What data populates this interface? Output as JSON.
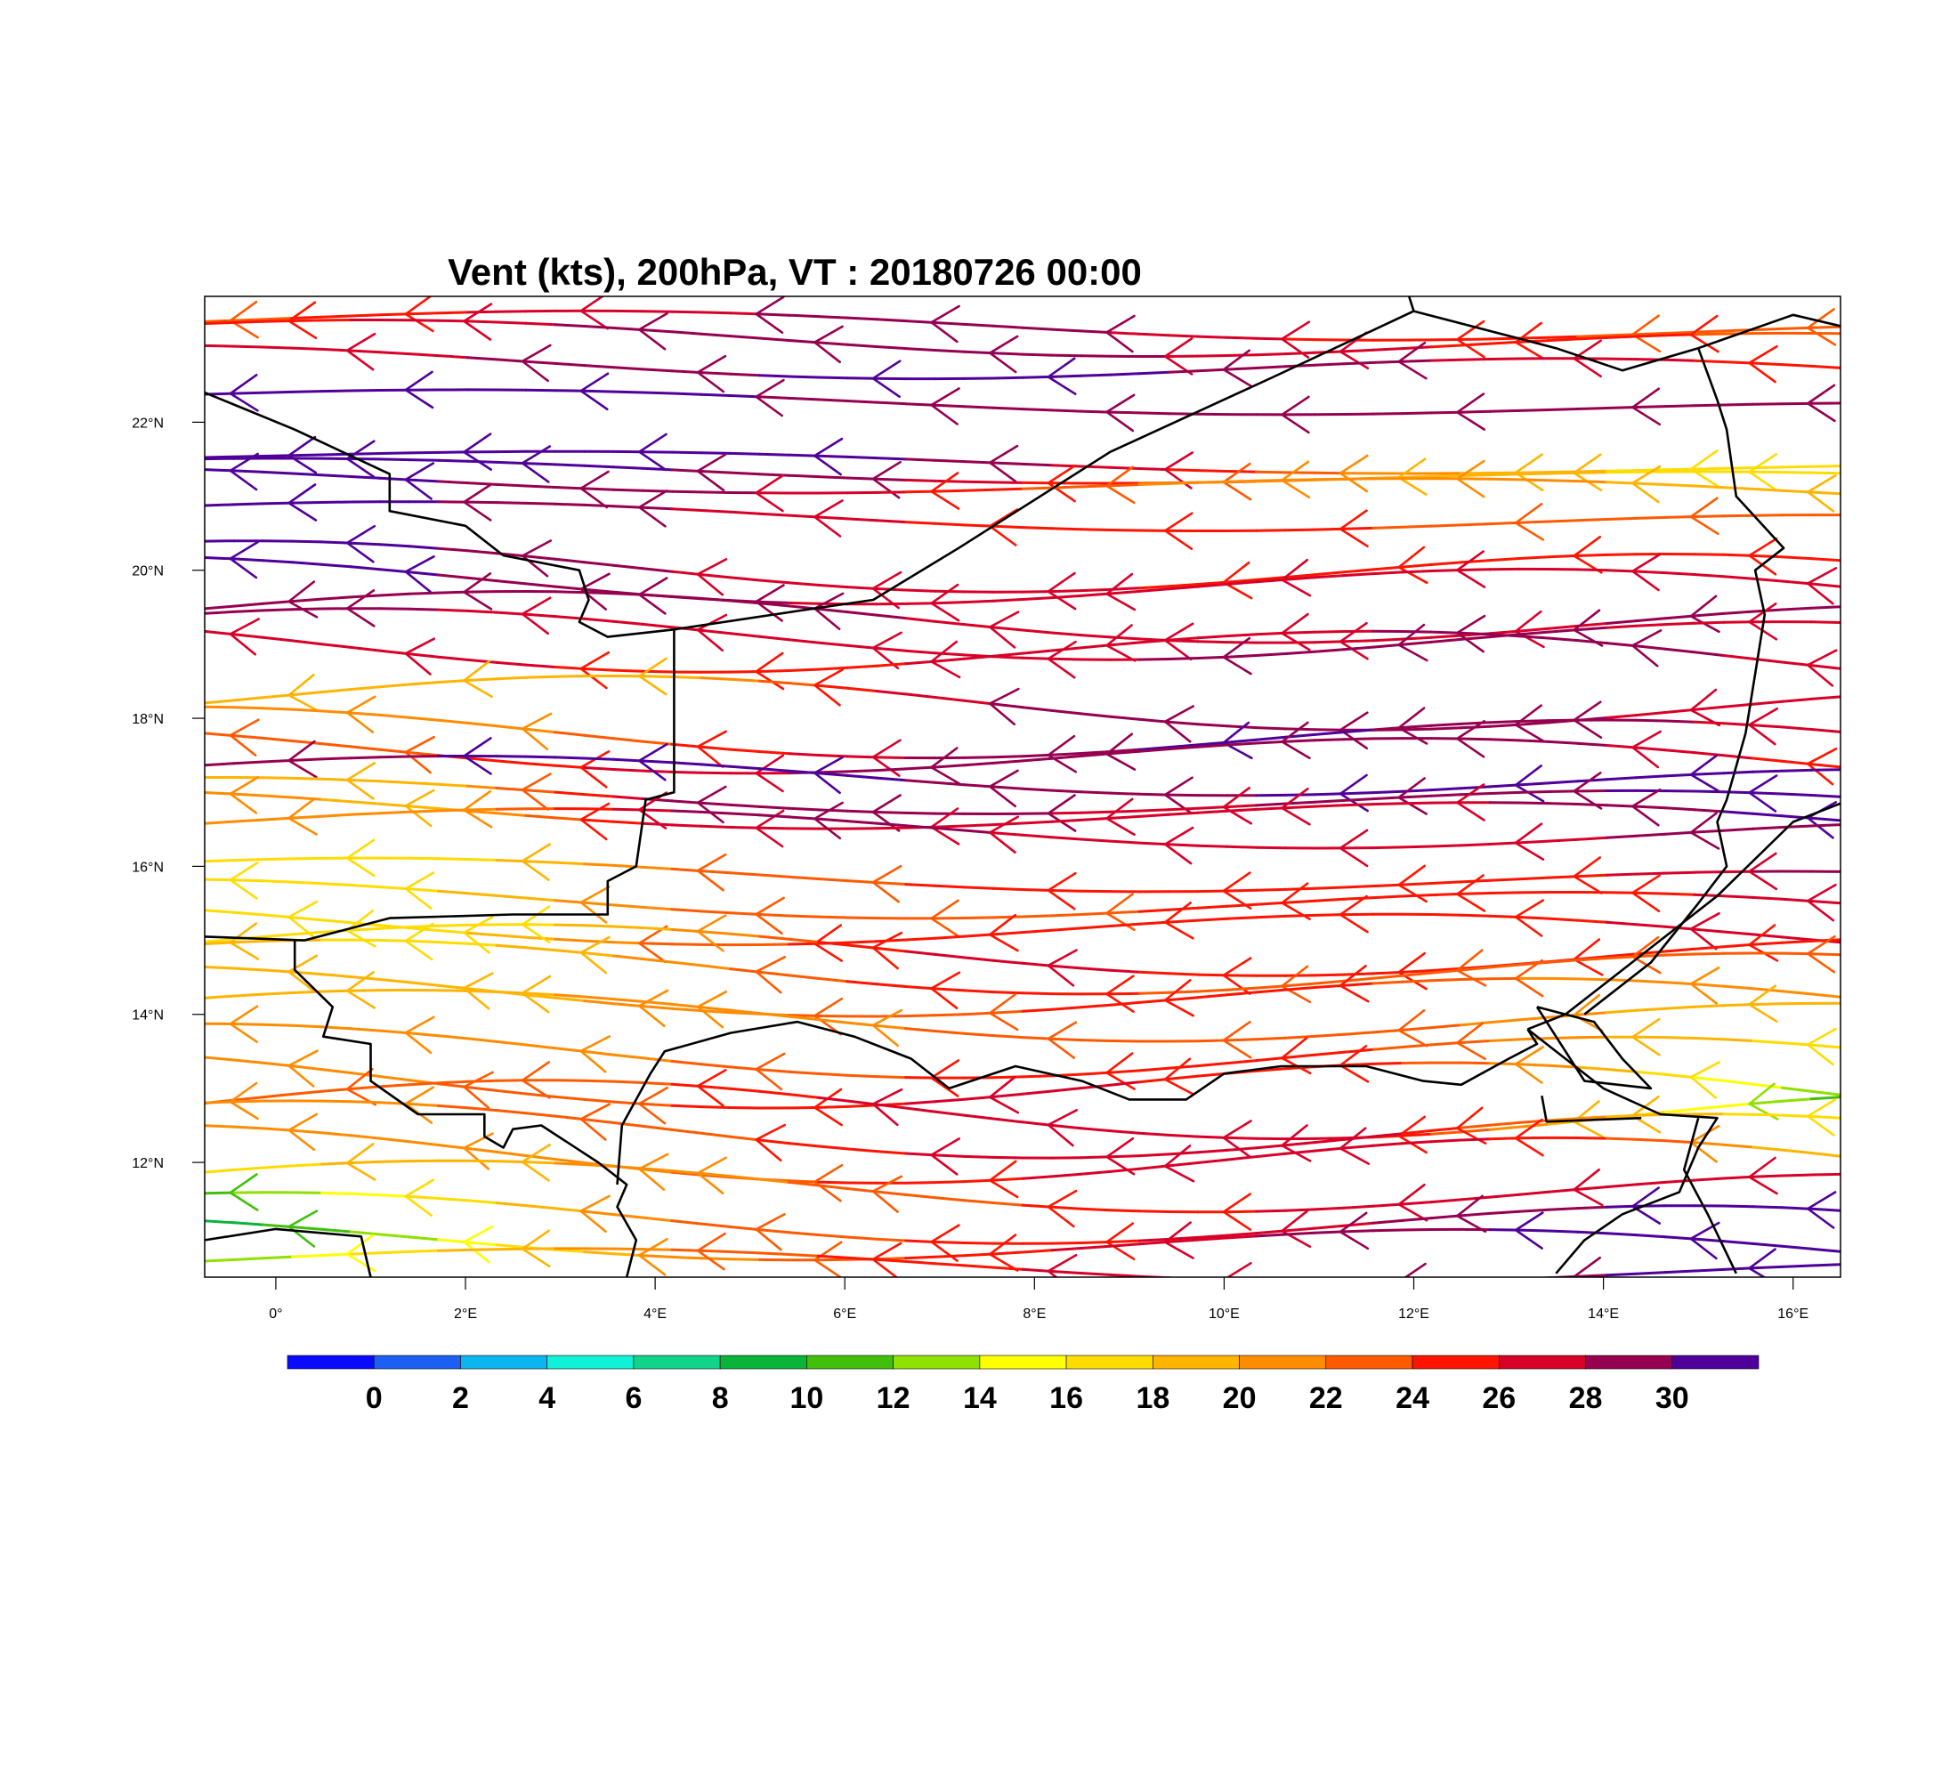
{
  "title": "Vent (kts), 200hPa, VT : 20180726  00:00",
  "map": {
    "lon_range": [
      -0.75,
      16.5
    ],
    "lat_range": [
      10.45,
      23.7
    ],
    "lon_ticks": [
      {
        "value": 0,
        "label": "0°"
      },
      {
        "value": 2,
        "label": "2°E"
      },
      {
        "value": 4,
        "label": "4°E"
      },
      {
        "value": 6,
        "label": "6°E"
      },
      {
        "value": 8,
        "label": "8°E"
      },
      {
        "value": 10,
        "label": "10°E"
      },
      {
        "value": 12,
        "label": "12°E"
      },
      {
        "value": 14,
        "label": "14°E"
      },
      {
        "value": 16,
        "label": "16°E"
      }
    ],
    "lat_ticks": [
      {
        "value": 12,
        "label": "12°N"
      },
      {
        "value": 14,
        "label": "14°N"
      },
      {
        "value": 16,
        "label": "16°N"
      },
      {
        "value": 18,
        "label": "18°N"
      },
      {
        "value": 20,
        "label": "20°N"
      },
      {
        "value": 22,
        "label": "22°N"
      }
    ],
    "borders": [
      [
        [
          -0.75,
          22.4
        ],
        [
          0.2,
          21.9
        ],
        [
          1.2,
          21.3
        ],
        [
          1.2,
          20.8
        ],
        [
          2.0,
          20.6
        ],
        [
          2.4,
          20.2
        ],
        [
          3.2,
          20.0
        ],
        [
          3.3,
          19.6
        ],
        [
          3.2,
          19.3
        ],
        [
          3.5,
          19.1
        ],
        [
          4.2,
          19.2
        ]
      ],
      [
        [
          4.2,
          19.2
        ],
        [
          5.5,
          19.45
        ],
        [
          6.3,
          19.6
        ],
        [
          7.2,
          20.3
        ],
        [
          8.8,
          21.6
        ],
        [
          10.5,
          22.6
        ],
        [
          12.0,
          23.5
        ],
        [
          13.5,
          23.0
        ],
        [
          14.2,
          22.7
        ],
        [
          15.0,
          23.0
        ],
        [
          16.0,
          23.45
        ],
        [
          16.5,
          23.3
        ]
      ],
      [
        [
          12.0,
          23.5
        ],
        [
          11.95,
          23.7
        ]
      ],
      [
        [
          4.2,
          19.2
        ],
        [
          4.2,
          17.0
        ],
        [
          3.9,
          16.9
        ],
        [
          3.8,
          16.0
        ],
        [
          3.5,
          15.8
        ],
        [
          3.5,
          15.35
        ],
        [
          2.5,
          15.35
        ],
        [
          1.2,
          15.3
        ],
        [
          0.3,
          15.0
        ],
        [
          -0.75,
          15.05
        ]
      ],
      [
        [
          0.2,
          15.0
        ],
        [
          0.2,
          14.6
        ],
        [
          0.6,
          14.1
        ],
        [
          0.5,
          13.7
        ],
        [
          1.0,
          13.6
        ],
        [
          1.0,
          13.1
        ],
        [
          1.5,
          12.65
        ],
        [
          2.2,
          12.65
        ],
        [
          2.2,
          12.35
        ],
        [
          2.4,
          12.2
        ],
        [
          2.5,
          12.45
        ],
        [
          2.8,
          12.5
        ],
        [
          3.4,
          12.0
        ],
        [
          3.7,
          11.7
        ],
        [
          3.6,
          11.4
        ],
        [
          3.8,
          10.95
        ],
        [
          3.7,
          10.45
        ]
      ],
      [
        [
          3.6,
          11.7
        ],
        [
          3.65,
          12.5
        ],
        [
          3.95,
          13.2
        ],
        [
          4.1,
          13.5
        ],
        [
          4.8,
          13.75
        ],
        [
          5.5,
          13.9
        ],
        [
          6.1,
          13.7
        ],
        [
          6.7,
          13.4
        ],
        [
          7.1,
          13.0
        ],
        [
          7.8,
          13.3
        ],
        [
          8.5,
          13.1
        ],
        [
          9.0,
          12.85
        ],
        [
          9.6,
          12.85
        ],
        [
          10.0,
          13.2
        ],
        [
          10.6,
          13.3
        ],
        [
          11.5,
          13.3
        ],
        [
          12.1,
          13.1
        ],
        [
          12.5,
          13.05
        ],
        [
          13.0,
          13.4
        ],
        [
          13.3,
          13.6
        ],
        [
          13.2,
          13.8
        ]
      ],
      [
        [
          13.2,
          13.8
        ],
        [
          13.6,
          14.0
        ],
        [
          14.0,
          14.4
        ],
        [
          14.5,
          14.9
        ],
        [
          15.2,
          15.6
        ],
        [
          16.0,
          16.6
        ],
        [
          16.5,
          16.85
        ]
      ],
      [
        [
          13.2,
          13.8
        ],
        [
          14.0,
          13.0
        ],
        [
          14.6,
          12.65
        ],
        [
          15.2,
          12.6
        ],
        [
          15.0,
          12.2
        ],
        [
          14.8,
          11.6
        ],
        [
          14.2,
          11.3
        ],
        [
          13.8,
          10.95
        ],
        [
          13.5,
          10.5
        ]
      ],
      [
        [
          13.35,
          12.9
        ],
        [
          13.4,
          12.55
        ],
        [
          14.4,
          12.6
        ]
      ],
      [
        [
          15.0,
          23.0
        ],
        [
          15.2,
          22.3
        ],
        [
          15.3,
          21.9
        ],
        [
          15.4,
          21.0
        ],
        [
          15.9,
          20.3
        ],
        [
          15.6,
          20.0
        ],
        [
          15.7,
          19.4
        ],
        [
          15.6,
          18.6
        ],
        [
          15.5,
          17.8
        ],
        [
          15.3,
          16.9
        ],
        [
          15.2,
          16.6
        ],
        [
          15.3,
          16.0
        ],
        [
          15.0,
          15.5
        ],
        [
          14.5,
          14.7
        ],
        [
          13.8,
          14.0
        ]
      ],
      [
        [
          15.0,
          12.6
        ],
        [
          14.85,
          11.9
        ],
        [
          15.1,
          11.3
        ],
        [
          15.4,
          10.5
        ]
      ],
      [
        [
          1.0,
          10.45
        ],
        [
          0.9,
          11.0
        ],
        [
          0.0,
          11.1
        ],
        [
          -0.75,
          10.95
        ]
      ],
      [
        [
          13.3,
          14.1
        ],
        [
          13.6,
          13.5
        ],
        [
          13.8,
          13.1
        ],
        [
          14.5,
          13.0
        ],
        [
          14.2,
          13.4
        ],
        [
          13.9,
          13.9
        ],
        [
          13.3,
          14.1
        ]
      ]
    ],
    "legend_colors": [
      "#0a0aff",
      "#1b60f2",
      "#0bb5f0",
      "#0ff2d6",
      "#0fd48a",
      "#0ab33a",
      "#40c00b",
      "#90e000",
      "#ffff00",
      "#ffdc00",
      "#ffb400",
      "#ff8c00",
      "#ff5a00",
      "#ff1400",
      "#d80028",
      "#960050",
      "#50009a"
    ],
    "legend_labels": [
      "0",
      "2",
      "4",
      "6",
      "8",
      "10",
      "12",
      "14",
      "16",
      "18",
      "20",
      "22",
      "24",
      "26",
      "28",
      "30"
    ],
    "streamlines": [
      {
        "lat": 23.3,
        "amp": 0.15,
        "phase": 0.0,
        "speeds": [
          23,
          26,
          28,
          29,
          26,
          24,
          22
        ]
      },
      {
        "lat": 23.1,
        "amp": 0.2,
        "phase": 1.0,
        "speeds": [
          25,
          27,
          30,
          29,
          27,
          25,
          23
        ]
      },
      {
        "lat": 22.75,
        "amp": 0.18,
        "phase": 2.0,
        "speeds": [
          26,
          28,
          30,
          31,
          29,
          27,
          25
        ]
      },
      {
        "lat": 22.25,
        "amp": 0.12,
        "phase": 0.5,
        "speeds": [
          31,
          31,
          30,
          29,
          29,
          28,
          28
        ]
      },
      {
        "lat": 21.45,
        "amp": 0.1,
        "phase": 0.0,
        "speeds": [
          31,
          31,
          31,
          30,
          27,
          21,
          18,
          17
        ]
      },
      {
        "lat": 21.3,
        "amp": 0.12,
        "phase": 1.3,
        "speeds": [
          31,
          31,
          30,
          28,
          24,
          20,
          18,
          16
        ]
      },
      {
        "lat": 21.15,
        "amp": 0.14,
        "phase": 2.6,
        "speeds": [
          30,
          30,
          29,
          26,
          22,
          21,
          20,
          19
        ]
      },
      {
        "lat": 20.7,
        "amp": 0.15,
        "phase": 0.8,
        "speeds": [
          31,
          30,
          28,
          26,
          25,
          24,
          23,
          23
        ]
      },
      {
        "lat": 20.0,
        "amp": 0.3,
        "phase": 1.6,
        "speeds": [
          31,
          30,
          28,
          27,
          26,
          25,
          25,
          25
        ]
      },
      {
        "lat": 19.8,
        "amp": 0.28,
        "phase": 2.2,
        "speeds": [
          31,
          30,
          29,
          27,
          26,
          26,
          26,
          26
        ]
      },
      {
        "lat": 19.35,
        "amp": 0.3,
        "phase": 0.4,
        "speeds": [
          30,
          29,
          28,
          28,
          27,
          27,
          28,
          28
        ]
      },
      {
        "lat": 19.1,
        "amp": 0.3,
        "phase": 1.1,
        "speeds": [
          29,
          28,
          27,
          27,
          28,
          29,
          28,
          27
        ]
      },
      {
        "lat": 18.9,
        "amp": 0.32,
        "phase": 2.9,
        "speeds": [
          28,
          27,
          25,
          26,
          27,
          28,
          29,
          27
        ]
      },
      {
        "lat": 18.2,
        "amp": 0.32,
        "phase": 0.0,
        "speeds": [
          20,
          18,
          19,
          27,
          30,
          29,
          28,
          27
        ]
      },
      {
        "lat": 17.75,
        "amp": 0.3,
        "phase": 1.9,
        "speeds": [
          21,
          20,
          24,
          28,
          30,
          30,
          29,
          26
        ]
      },
      {
        "lat": 17.5,
        "amp": 0.28,
        "phase": 2.7,
        "speeds": [
          22,
          24,
          27,
          29,
          30,
          29,
          28,
          25
        ]
      },
      {
        "lat": 17.2,
        "amp": 0.22,
        "phase": 0.6,
        "speeds": [
          29,
          30,
          31,
          30,
          29,
          31,
          31,
          31
        ]
      },
      {
        "lat": 16.9,
        "amp": 0.2,
        "phase": 1.7,
        "speeds": [
          20,
          19,
          29,
          30,
          27,
          29,
          30,
          31
        ]
      },
      {
        "lat": 16.7,
        "amp": 0.22,
        "phase": 2.4,
        "speeds": [
          21,
          19,
          27,
          28,
          26,
          27,
          29,
          31
        ]
      },
      {
        "lat": 16.5,
        "amp": 0.22,
        "phase": 0.2,
        "speeds": [
          22,
          20,
          28,
          29,
          26,
          27,
          28,
          30
        ]
      },
      {
        "lat": 15.85,
        "amp": 0.18,
        "phase": 1.0,
        "speeds": [
          16,
          17,
          22,
          24,
          25,
          25,
          26,
          29
        ]
      },
      {
        "lat": 15.5,
        "amp": 0.22,
        "phase": 2.0,
        "speeds": [
          17,
          18,
          22,
          23,
          24,
          24,
          25,
          28
        ]
      },
      {
        "lat": 15.15,
        "amp": 0.25,
        "phase": 2.8,
        "speeds": [
          18,
          17,
          23,
          25,
          24,
          25,
          26,
          27
        ]
      },
      {
        "lat": 14.85,
        "amp": 0.3,
        "phase": 0.4,
        "speeds": [
          18,
          16,
          20,
          26,
          26,
          25,
          26,
          24
        ]
      },
      {
        "lat": 14.6,
        "amp": 0.32,
        "phase": 1.2,
        "speeds": [
          19,
          17,
          21,
          25,
          24,
          22,
          24,
          23
        ]
      },
      {
        "lat": 14.25,
        "amp": 0.3,
        "phase": 2.2,
        "speeds": [
          19,
          18,
          21,
          23,
          25,
          24,
          21,
          20
        ]
      },
      {
        "lat": 13.95,
        "amp": 0.3,
        "phase": 0.9,
        "speeds": [
          20,
          19,
          21,
          22,
          24,
          23,
          20,
          19
        ]
      },
      {
        "lat": 13.45,
        "amp": 0.32,
        "phase": 1.8,
        "speeds": [
          20,
          21,
          22,
          24,
          25,
          24,
          20,
          17
        ]
      },
      {
        "lat": 13.05,
        "amp": 0.35,
        "phase": 2.6,
        "speeds": [
          21,
          22,
          24,
          26,
          26,
          25,
          19,
          12
        ]
      },
      {
        "lat": 12.7,
        "amp": 0.35,
        "phase": 0.3,
        "speeds": [
          22,
          23,
          24,
          27,
          27,
          26,
          18,
          11
        ]
      },
      {
        "lat": 12.4,
        "amp": 0.34,
        "phase": 1.4,
        "speeds": [
          21,
          22,
          23,
          26,
          28,
          27,
          20,
          16
        ]
      },
      {
        "lat": 12.05,
        "amp": 0.35,
        "phase": 2.1,
        "speeds": [
          20,
          21,
          22,
          25,
          27,
          28,
          24,
          18
        ]
      },
      {
        "lat": 11.65,
        "amp": 0.3,
        "phase": 0.7,
        "speeds": [
          17,
          19,
          21,
          23,
          25,
          27,
          28,
          26
        ]
      },
      {
        "lat": 11.2,
        "amp": 0.3,
        "phase": 1.5,
        "speeds": [
          11,
          17,
          22,
          24,
          26,
          28,
          30,
          31
        ]
      },
      {
        "lat": 10.9,
        "amp": 0.25,
        "phase": 2.5,
        "speeds": [
          9,
          14,
          21,
          24,
          27,
          29,
          31,
          31
        ]
      },
      {
        "lat": 10.6,
        "amp": 0.18,
        "phase": 0.1,
        "speeds": [
          12,
          18,
          22,
          25,
          27,
          29,
          30,
          31
        ]
      }
    ]
  }
}
